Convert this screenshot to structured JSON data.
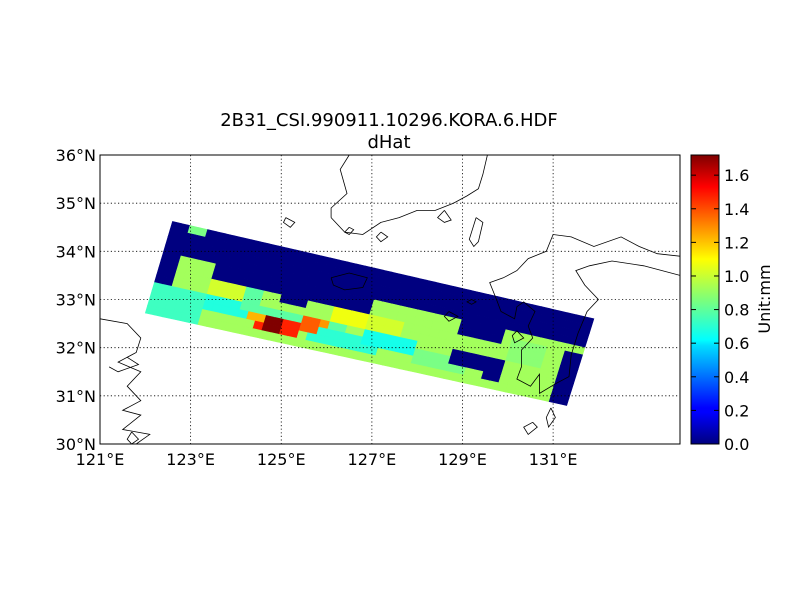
{
  "figure": {
    "title_line1": "2B31_CSI.990911.10296.KORA.6.HDF",
    "title_line2": "dHat"
  },
  "map": {
    "lon_range": [
      121,
      133.8
    ],
    "lat_range": [
      30,
      36
    ],
    "lon_ticks": [
      {
        "value": 121,
        "label": "121°E"
      },
      {
        "value": 123,
        "label": "123°E"
      },
      {
        "value": 125,
        "label": "125°E"
      },
      {
        "value": 127,
        "label": "127°E"
      },
      {
        "value": 129,
        "label": "129°E"
      },
      {
        "value": 131,
        "label": "131°E"
      }
    ],
    "lat_ticks": [
      {
        "value": 30,
        "label": "30°N"
      },
      {
        "value": 31,
        "label": "31°N"
      },
      {
        "value": 32,
        "label": "32°N"
      },
      {
        "value": 33,
        "label": "33°N"
      },
      {
        "value": 34,
        "label": "34°N"
      },
      {
        "value": 35,
        "label": "35°N"
      },
      {
        "value": 36,
        "label": "36°N"
      }
    ],
    "grid": "dotted"
  },
  "colorbar": {
    "label": "Unit:mm",
    "colormap": "jet",
    "range": [
      0.0,
      1.72
    ],
    "ticks": [
      {
        "value": 0.0,
        "label": "0.0"
      },
      {
        "value": 0.2,
        "label": "0.2"
      },
      {
        "value": 0.4,
        "label": "0.4"
      },
      {
        "value": 0.6,
        "label": "0.6"
      },
      {
        "value": 0.8,
        "label": "0.8"
      },
      {
        "value": 1.0,
        "label": "1.0"
      },
      {
        "value": 1.2,
        "label": "1.2"
      },
      {
        "value": 1.4,
        "label": "1.4"
      },
      {
        "value": 1.6,
        "label": "1.6"
      }
    ]
  },
  "swath": {
    "corners": {
      "upper_left": [
        122.6,
        34.62
      ],
      "upper_right": [
        131.9,
        32.6
      ],
      "lower_right": [
        131.3,
        30.8
      ],
      "lower_left": [
        122.0,
        32.72
      ]
    },
    "along_track_cells": 48,
    "cross_track_cells": 12,
    "background_value": 0.92,
    "patches": [
      {
        "i": [
          0,
          48
        ],
        "j": [
          0,
          4
        ],
        "value": 0.0
      },
      {
        "i": [
          0,
          2
        ],
        "j": [
          4,
          10
        ],
        "value": 0.0
      },
      {
        "i": [
          0,
          2
        ],
        "j": [
          10,
          12
        ],
        "value": 0.85
      },
      {
        "i": [
          2,
          4
        ],
        "j": [
          0,
          1
        ],
        "value": 0.85
      },
      {
        "i": [
          6,
          10
        ],
        "j": [
          6,
          8
        ],
        "value": 1.0
      },
      {
        "i": [
          6,
          24
        ],
        "j": [
          4,
          6
        ],
        "value": 0.0
      },
      {
        "i": [
          14,
          17
        ],
        "j": [
          4,
          7
        ],
        "value": 0.0
      },
      {
        "i": [
          34,
          39
        ],
        "j": [
          4,
          6
        ],
        "value": 0.0
      },
      {
        "i": [
          0,
          6
        ],
        "j": [
          8,
          12
        ],
        "value": 0.75
      },
      {
        "i": [
          6,
          12
        ],
        "j": [
          8,
          10
        ],
        "value": 0.7
      },
      {
        "i": [
          10,
          12
        ],
        "j": [
          6,
          9
        ],
        "value": 0.8
      },
      {
        "i": [
          12,
          22
        ],
        "j": [
          8,
          10
        ],
        "value": 0.8
      },
      {
        "i": [
          18,
          26
        ],
        "j": [
          9,
          11
        ],
        "value": 0.72
      },
      {
        "i": [
          24,
          30
        ],
        "j": [
          8,
          10
        ],
        "value": 0.68
      },
      {
        "i": [
          24,
          28
        ],
        "j": [
          6,
          8
        ],
        "value": 1.0
      },
      {
        "i": [
          20,
          24
        ],
        "j": [
          6,
          8
        ],
        "value": 1.05
      },
      {
        "i": [
          12,
          14
        ],
        "j": [
          9,
          11
        ],
        "value": 1.45
      },
      {
        "i": [
          13,
          15
        ],
        "j": [
          9,
          11
        ],
        "value": 1.72
      },
      {
        "i": [
          15,
          17
        ],
        "j": [
          9,
          11
        ],
        "value": 1.45
      },
      {
        "i": [
          11,
          13
        ],
        "j": [
          9,
          10
        ],
        "value": 1.2
      },
      {
        "i": [
          17,
          19
        ],
        "j": [
          8,
          10
        ],
        "value": 1.35
      },
      {
        "i": [
          19,
          20
        ],
        "j": [
          8,
          9
        ],
        "value": 1.25
      },
      {
        "i": [
          30,
          36
        ],
        "j": [
          9,
          11
        ],
        "value": 0.85
      },
      {
        "i": [
          34,
          40
        ],
        "j": [
          8,
          10
        ],
        "value": 0.0
      },
      {
        "i": [
          38,
          40
        ],
        "j": [
          10,
          11
        ],
        "value": 0.0
      },
      {
        "i": [
          46,
          48
        ],
        "j": [
          5,
          12
        ],
        "value": 0.0
      },
      {
        "i": [
          40,
          44
        ],
        "j": [
          5,
          8
        ],
        "value": 0.88
      }
    ]
  }
}
